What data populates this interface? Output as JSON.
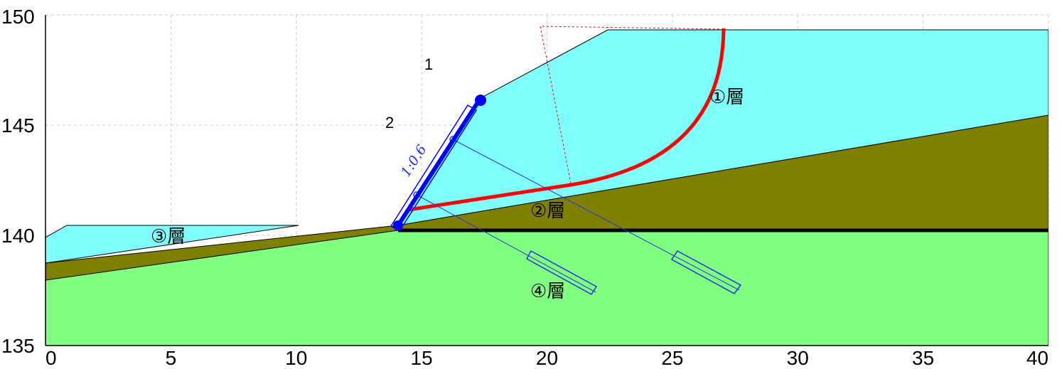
{
  "chart_data": {
    "type": "diagram",
    "x_ticks": [
      "0",
      "5",
      "10",
      "15",
      "20",
      "25",
      "30",
      "35",
      "40"
    ],
    "y_ticks": [
      "135",
      "140",
      "145",
      "150"
    ],
    "xlim": [
      0,
      40
    ],
    "ylim": [
      135,
      150
    ],
    "grid": true,
    "layers": [
      {
        "label": "①層",
        "color": "#80ffff"
      },
      {
        "label": "②層",
        "color": "#808000"
      },
      {
        "label": "③層",
        "color": "#80ffff"
      },
      {
        "label": "④層",
        "color": "#80ff80"
      }
    ],
    "point_labels": [
      "1",
      "2"
    ],
    "slope_ratio": "1:0.6",
    "colors": {
      "slip_surface": "#ff0000",
      "retaining_wall": "#0000ff",
      "anchor": "#2233dd",
      "base_line": "#000000",
      "grid": "#cccccc"
    }
  }
}
